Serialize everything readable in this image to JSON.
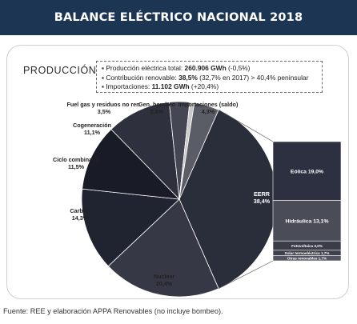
{
  "header": {
    "title": "BALANCE ELÉCTRICO NACIONAL 2018"
  },
  "section_title": "PRODUCCIÓN",
  "info_lines": [
    {
      "bullet": "▪",
      "prefix": "Producción eléctrica total: ",
      "value": "260.906 GWh",
      "suffix": " (-0,5%)"
    },
    {
      "bullet": "▪",
      "prefix": "Contribución renovable: ",
      "value": "38,5%",
      "suffix": " (32,7% en 2017) > 40,4% peninsular"
    },
    {
      "bullet": "▪",
      "prefix": "Importaciones: ",
      "value": "11.102 GWh",
      "suffix": " (+20,4%)"
    }
  ],
  "footnote": "Fuente: REE y elaboración APPA Renovables (no incluye bombeo).",
  "chart_data": {
    "type": "pie",
    "slices": [
      {
        "label": "EERR",
        "value": 38.4,
        "display": "38,4%",
        "color": "#2a2d3a"
      },
      {
        "label": "Nuclear",
        "value": 20.4,
        "display": "20,4%",
        "color": "#363846"
      },
      {
        "label": "Carbón",
        "value": 14.3,
        "display": "14,3%",
        "color": "#202330"
      },
      {
        "label": "Ciclo combinado",
        "value": 11.5,
        "display": "11,5%",
        "color": "#191b27"
      },
      {
        "label": "Cogeneración",
        "value": 11.1,
        "display": "11,1%",
        "color": "#2e303d"
      },
      {
        "label": "Fuel gas y residuos no ren.",
        "value": 3.5,
        "display": "3,5%",
        "color": "#444654"
      },
      {
        "label": "Gen. bombeo",
        "value": 0.8,
        "display": "0,8%",
        "color": "#c9c9c9"
      },
      {
        "label": "Importaciones (saldo)",
        "value": 4.3,
        "display": "4,3%",
        "color": "#5a5c66"
      }
    ],
    "breakdown": {
      "of": "EERR",
      "items": [
        {
          "label": "Eólica",
          "value": 19.0,
          "display": "19,0%",
          "color": "#2c3040"
        },
        {
          "label": "Hidráulica",
          "value": 13.1,
          "display": "13,1%",
          "color": "#4a4c58"
        },
        {
          "label": "Fotovoltaica",
          "value": 3.0,
          "display": "3,0%",
          "color": "#3a3c48"
        },
        {
          "label": "Solar termoeléctrica",
          "value": 1.7,
          "display": "1,7%",
          "color": "#3e404c"
        },
        {
          "label": "Otras renovables",
          "value": 1.7,
          "display": "1,7%",
          "color": "#52545f"
        }
      ]
    }
  }
}
